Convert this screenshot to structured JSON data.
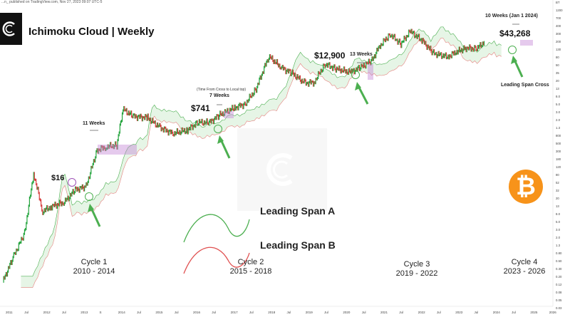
{
  "meta": {
    "publisher_line": "...n_ published on TradingView.com, Nov 27, 2023 09:07 UTC-5"
  },
  "title": "Ichimoku Cloud | Weekly",
  "colors": {
    "candle_up": "#22a33c",
    "candle_down": "#d63b3b",
    "span_a": "#4caf50",
    "span_b": "#e05050",
    "cloud_bull": "#d9f0d9",
    "cloud_bear": "#f8dada",
    "arrow": "#4caf50",
    "btc": "#f7931a",
    "highlight": "#c68ad6"
  },
  "annotations": {
    "p16": "$16",
    "p741": "$741",
    "p12900": "$12,900",
    "p43268": "$43,268",
    "w11": "11 Weeks",
    "w7": "7 Weeks",
    "w13": "13 Weeks",
    "w10": "10 Weeks (Jan 1 2024)",
    "time_note": "(Time From Cross to Local top)",
    "leading_cross": "Leading Span Cross"
  },
  "legend": {
    "span_a": "Leading Span A",
    "span_b": "Leading Span B"
  },
  "cycles": [
    {
      "name": "Cycle 1",
      "years": "2010 - 2014"
    },
    {
      "name": "Cycle 2",
      "years": "2015 - 2018"
    },
    {
      "name": "Cycle 3",
      "years": "2019 - 2022"
    },
    {
      "name": "Cycle 4",
      "years": "2023 - 2026"
    }
  ],
  "btc_symbol": "₿",
  "chart_data": {
    "type": "line",
    "title": "Ichimoku Cloud | Weekly",
    "y_scale": "log",
    "x_ticks": [
      "2011",
      "Jul",
      "2012",
      "Jul",
      "2013",
      "S",
      "2014",
      "Jul",
      "2015",
      "Jul",
      "2016",
      "Jul",
      "2017",
      "Jul",
      "2018",
      "Jul",
      "2019",
      "Jul",
      "2020",
      "Jul",
      "2021",
      "Jul",
      "2022",
      "Jul",
      "2023",
      "Jul",
      "2024",
      "Jul",
      "2025",
      "2026"
    ],
    "y_ticks": [
      "BT",
      "1200",
      "700",
      "400",
      "300",
      "200",
      "130",
      "80",
      "50",
      "35",
      "20",
      "13",
      "8.0",
      "5.0",
      "3.0",
      "2.0",
      "1.3",
      "800",
      "500",
      "300",
      "180",
      "120",
      "80",
      "52",
      "32",
      "20",
      "13",
      "8.0",
      "5.0",
      "3.0",
      "2.0",
      "1.3",
      "0.80",
      "0.50",
      "0.30",
      "0.20",
      "0.12",
      "0.08",
      "0.05",
      "0.03"
    ],
    "series": [
      {
        "name": "BTC price",
        "x": [
          2010.6,
          2010.9,
          2011.2,
          2011.45,
          2011.7,
          2011.95,
          2012.3,
          2012.6,
          2012.9,
          2013.2,
          2013.45,
          2013.75,
          2013.92,
          2014.2,
          2014.6,
          2014.95,
          2015.3,
          2015.7,
          2016.0,
          2016.3,
          2016.6,
          2017.0,
          2017.3,
          2017.6,
          2017.95,
          2018.3,
          2018.6,
          2018.95,
          2019.2,
          2019.5,
          2019.8,
          2020.2,
          2020.5,
          2020.8,
          2021.0,
          2021.3,
          2021.6,
          2021.86,
          2022.2,
          2022.5,
          2022.9,
          2023.1,
          2023.4,
          2023.7,
          2023.9
        ],
        "y": [
          0.06,
          0.25,
          0.9,
          25,
          3,
          4,
          5,
          10,
          12,
          90,
          110,
          120,
          900,
          600,
          550,
          320,
          230,
          280,
          430,
          420,
          650,
          960,
          1200,
          2800,
          17000,
          9000,
          6500,
          3800,
          4000,
          11000,
          8500,
          7000,
          9200,
          13500,
          29000,
          58000,
          34000,
          68000,
          40000,
          20000,
          16500,
          21000,
          27000,
          26000,
          37500
        ]
      },
      {
        "name": "Leading Span A",
        "x": [],
        "y": []
      },
      {
        "name": "Leading Span B",
        "x": [],
        "y": []
      }
    ]
  }
}
